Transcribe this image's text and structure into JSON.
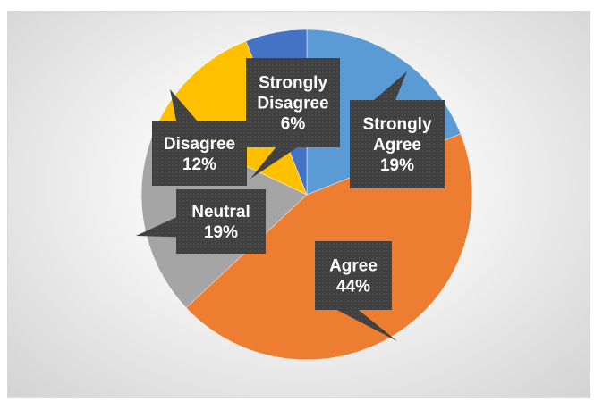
{
  "chart_data": {
    "type": "pie",
    "title": "",
    "slices": [
      {
        "label": "Strongly Agree",
        "value": 19,
        "percent_label": "19%",
        "color": "#5b9bd5"
      },
      {
        "label": "Agree",
        "value": 44,
        "percent_label": "44%",
        "color": "#ed7d31"
      },
      {
        "label": "Neutral",
        "value": 19,
        "percent_label": "19%",
        "color": "#a5a5a5"
      },
      {
        "label": "Disagree",
        "value": 12,
        "percent_label": "12%",
        "color": "#ffc000"
      },
      {
        "label": "Strongly Disagree",
        "value": 6,
        "percent_label": "6%",
        "color": "#4472c4"
      }
    ],
    "start_angle_deg": 0,
    "direction": "clockwise",
    "legend": "none",
    "data_labels": "callouts"
  },
  "colors": {
    "callout_fill": "#404040",
    "callout_text": "#ffffff",
    "background_center": "#ffffff",
    "background_edge": "#d3d3d3",
    "frame_border": "#d9d9d9",
    "title_fragment": "#2e75b6"
  }
}
